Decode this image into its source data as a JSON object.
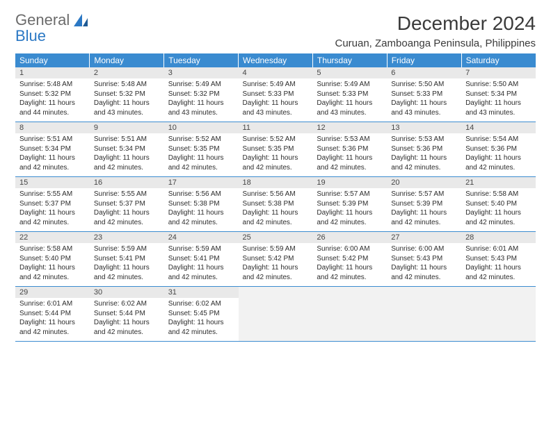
{
  "brand": {
    "word1": "General",
    "word2": "Blue"
  },
  "title": "December 2024",
  "location": "Curuan, Zamboanga Peninsula, Philippines",
  "colors": {
    "header_bg": "#3a8bd0",
    "header_text": "#ffffff",
    "daynum_bg": "#e9e9e9",
    "rule": "#3a8bd0",
    "logo_gray": "#6b6b6b",
    "logo_blue": "#2b78c4"
  },
  "weekdays": [
    "Sunday",
    "Monday",
    "Tuesday",
    "Wednesday",
    "Thursday",
    "Friday",
    "Saturday"
  ],
  "weeks": [
    [
      {
        "n": "1",
        "sr": "5:48 AM",
        "ss": "5:32 PM",
        "dl": "11 hours and 44 minutes."
      },
      {
        "n": "2",
        "sr": "5:48 AM",
        "ss": "5:32 PM",
        "dl": "11 hours and 43 minutes."
      },
      {
        "n": "3",
        "sr": "5:49 AM",
        "ss": "5:32 PM",
        "dl": "11 hours and 43 minutes."
      },
      {
        "n": "4",
        "sr": "5:49 AM",
        "ss": "5:33 PM",
        "dl": "11 hours and 43 minutes."
      },
      {
        "n": "5",
        "sr": "5:49 AM",
        "ss": "5:33 PM",
        "dl": "11 hours and 43 minutes."
      },
      {
        "n": "6",
        "sr": "5:50 AM",
        "ss": "5:33 PM",
        "dl": "11 hours and 43 minutes."
      },
      {
        "n": "7",
        "sr": "5:50 AM",
        "ss": "5:34 PM",
        "dl": "11 hours and 43 minutes."
      }
    ],
    [
      {
        "n": "8",
        "sr": "5:51 AM",
        "ss": "5:34 PM",
        "dl": "11 hours and 42 minutes."
      },
      {
        "n": "9",
        "sr": "5:51 AM",
        "ss": "5:34 PM",
        "dl": "11 hours and 42 minutes."
      },
      {
        "n": "10",
        "sr": "5:52 AM",
        "ss": "5:35 PM",
        "dl": "11 hours and 42 minutes."
      },
      {
        "n": "11",
        "sr": "5:52 AM",
        "ss": "5:35 PM",
        "dl": "11 hours and 42 minutes."
      },
      {
        "n": "12",
        "sr": "5:53 AM",
        "ss": "5:36 PM",
        "dl": "11 hours and 42 minutes."
      },
      {
        "n": "13",
        "sr": "5:53 AM",
        "ss": "5:36 PM",
        "dl": "11 hours and 42 minutes."
      },
      {
        "n": "14",
        "sr": "5:54 AM",
        "ss": "5:36 PM",
        "dl": "11 hours and 42 minutes."
      }
    ],
    [
      {
        "n": "15",
        "sr": "5:55 AM",
        "ss": "5:37 PM",
        "dl": "11 hours and 42 minutes."
      },
      {
        "n": "16",
        "sr": "5:55 AM",
        "ss": "5:37 PM",
        "dl": "11 hours and 42 minutes."
      },
      {
        "n": "17",
        "sr": "5:56 AM",
        "ss": "5:38 PM",
        "dl": "11 hours and 42 minutes."
      },
      {
        "n": "18",
        "sr": "5:56 AM",
        "ss": "5:38 PM",
        "dl": "11 hours and 42 minutes."
      },
      {
        "n": "19",
        "sr": "5:57 AM",
        "ss": "5:39 PM",
        "dl": "11 hours and 42 minutes."
      },
      {
        "n": "20",
        "sr": "5:57 AM",
        "ss": "5:39 PM",
        "dl": "11 hours and 42 minutes."
      },
      {
        "n": "21",
        "sr": "5:58 AM",
        "ss": "5:40 PM",
        "dl": "11 hours and 42 minutes."
      }
    ],
    [
      {
        "n": "22",
        "sr": "5:58 AM",
        "ss": "5:40 PM",
        "dl": "11 hours and 42 minutes."
      },
      {
        "n": "23",
        "sr": "5:59 AM",
        "ss": "5:41 PM",
        "dl": "11 hours and 42 minutes."
      },
      {
        "n": "24",
        "sr": "5:59 AM",
        "ss": "5:41 PM",
        "dl": "11 hours and 42 minutes."
      },
      {
        "n": "25",
        "sr": "5:59 AM",
        "ss": "5:42 PM",
        "dl": "11 hours and 42 minutes."
      },
      {
        "n": "26",
        "sr": "6:00 AM",
        "ss": "5:42 PM",
        "dl": "11 hours and 42 minutes."
      },
      {
        "n": "27",
        "sr": "6:00 AM",
        "ss": "5:43 PM",
        "dl": "11 hours and 42 minutes."
      },
      {
        "n": "28",
        "sr": "6:01 AM",
        "ss": "5:43 PM",
        "dl": "11 hours and 42 minutes."
      }
    ],
    [
      {
        "n": "29",
        "sr": "6:01 AM",
        "ss": "5:44 PM",
        "dl": "11 hours and 42 minutes."
      },
      {
        "n": "30",
        "sr": "6:02 AM",
        "ss": "5:44 PM",
        "dl": "11 hours and 42 minutes."
      },
      {
        "n": "31",
        "sr": "6:02 AM",
        "ss": "5:45 PM",
        "dl": "11 hours and 42 minutes."
      },
      null,
      null,
      null,
      null
    ]
  ],
  "labels": {
    "sunrise": "Sunrise:",
    "sunset": "Sunset:",
    "daylight": "Daylight:"
  }
}
